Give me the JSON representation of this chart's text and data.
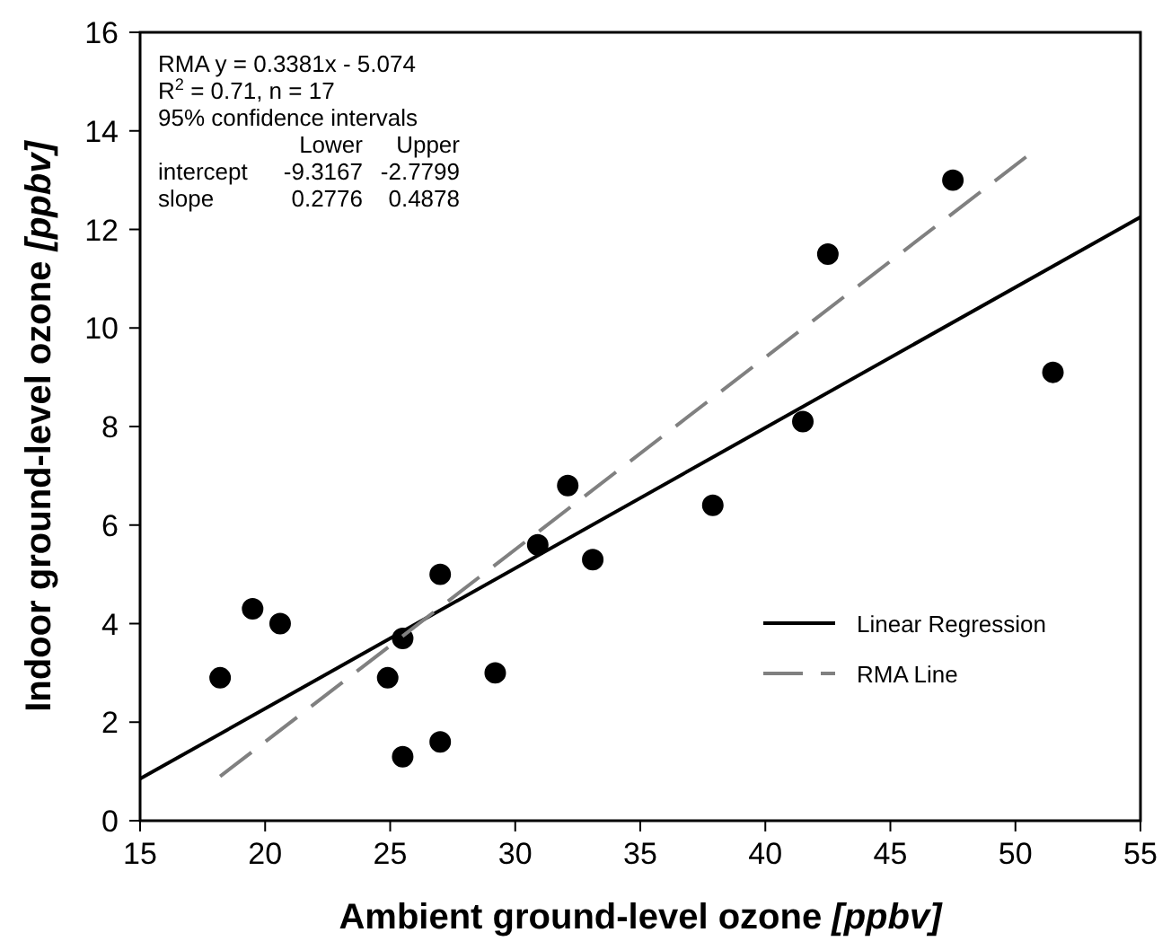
{
  "chart_data": {
    "type": "scatter",
    "xlabel": "Ambient ground-level ozone [ppbv]",
    "ylabel": "Indoor ground-level ozone [ppbv]",
    "xlim": [
      15,
      55
    ],
    "ylim": [
      0,
      16
    ],
    "xticks": [
      15,
      20,
      25,
      30,
      35,
      40,
      45,
      50,
      55
    ],
    "yticks": [
      0,
      2,
      4,
      6,
      8,
      10,
      12,
      14,
      16
    ],
    "grid": false,
    "legend": "bottom right",
    "annotations": [
      "RMA y = 0.3381x - 5.074",
      "R$^{2}$ = 0.71, n = 17",
      "95% confidence intervals",
      "\tLower\tUpper",
      "intercept\t-9.3167\t-2.7799",
      "slope\t0.2776\t0.4878"
    ],
    "series": [
      {
        "color": "#000000",
        "marker": "circle",
        "x": [
          18.2,
          19.5,
          20.6,
          24.9,
          25.5,
          25.5,
          27,
          27,
          29.2,
          30.9,
          32.1,
          33.1,
          37.9,
          41.5,
          42.5,
          47.5,
          51.5
        ],
        "values": [
          2.9,
          4.3,
          4.0,
          2.9,
          3.7,
          1.3,
          5.0,
          1.6,
          3.0,
          5.6,
          6.8,
          5.3,
          6.4,
          8.1,
          11.5,
          13.0,
          9.1
        ]
      },
      {
        "type": "line",
        "name": "Linear Regression",
        "color": "#000000",
        "line_style": "solid",
        "x": [
          15,
          55
        ],
        "values": [
          0.85,
          12.25
        ]
      },
      {
        "type": "line",
        "name": "RMA Line",
        "color": "#808080",
        "line_style": "dashed",
        "x": [
          18.2,
          50.5
        ],
        "values": [
          0.9,
          13.5
        ]
      }
    ]
  }
}
